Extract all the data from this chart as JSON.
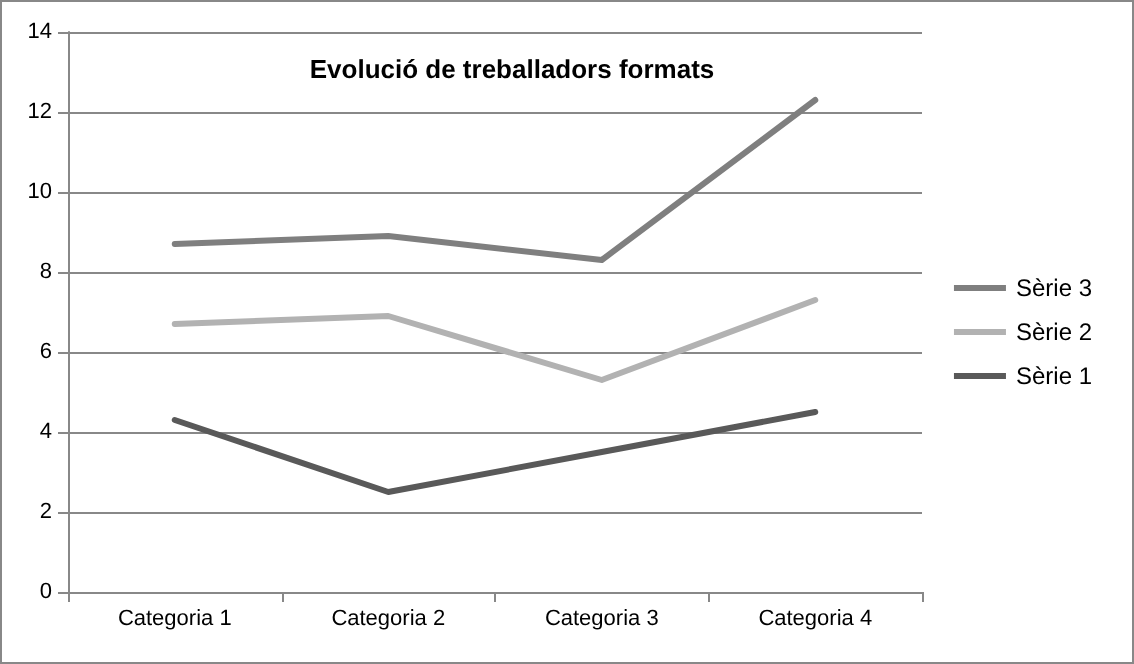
{
  "chart_data": {
    "type": "line",
    "title": "Evolució de treballadors formats",
    "categories": [
      "Categoria 1",
      "Categoria 2",
      "Categoria 3",
      "Categoria 4"
    ],
    "series": [
      {
        "name": "Sèrie 1",
        "color": "#595959",
        "values": [
          4.3,
          2.5,
          3.5,
          4.5
        ]
      },
      {
        "name": "Sèrie 2",
        "color": "#b2b2b2",
        "values": [
          6.7,
          6.9,
          5.3,
          7.3
        ]
      },
      {
        "name": "Sèrie 3",
        "color": "#7f7f7f",
        "values": [
          8.7,
          8.9,
          8.3,
          12.3
        ]
      }
    ],
    "ylim": [
      0,
      14
    ],
    "yticks": [
      0,
      2,
      4,
      6,
      8,
      10,
      12,
      14
    ],
    "grid": "y",
    "legend": "right",
    "marker": "none",
    "line_style": "solid"
  }
}
